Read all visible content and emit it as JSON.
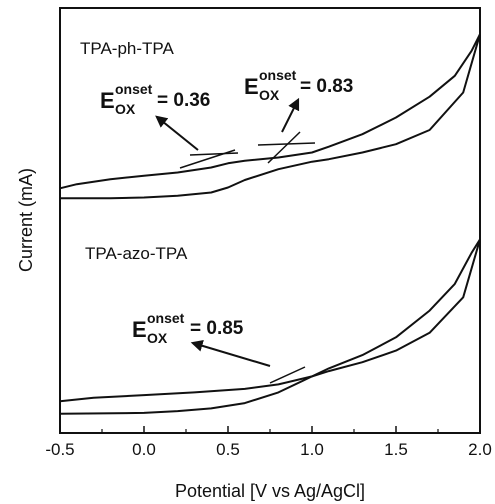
{
  "chart_data": {
    "type": "line",
    "xlabel": "Potential [V vs Ag/AgCl]",
    "ylabel": "Current (mA)",
    "xlim": [
      -0.5,
      2.0
    ],
    "xticks": [
      "-0.5",
      "0.0",
      "0.5",
      "1.0",
      "1.5",
      "2.0"
    ],
    "grid": false,
    "y_tick_labels": false,
    "panels": [
      {
        "label": "TPA-ph-TPA",
        "cv_forward": [
          [
            -0.5,
            4.5
          ],
          [
            -0.4,
            5.0
          ],
          [
            -0.2,
            5.6
          ],
          [
            0.0,
            6.0
          ],
          [
            0.2,
            6.4
          ],
          [
            0.4,
            7.0
          ],
          [
            0.5,
            7.5
          ],
          [
            0.6,
            7.8
          ],
          [
            0.8,
            8.2
          ],
          [
            1.0,
            8.8
          ],
          [
            1.1,
            9.5
          ],
          [
            1.3,
            11.0
          ],
          [
            1.5,
            13.0
          ],
          [
            1.7,
            15.5
          ],
          [
            1.85,
            18.0
          ],
          [
            1.95,
            21.0
          ],
          [
            2.0,
            23.0
          ]
        ],
        "cv_reverse": [
          [
            2.0,
            23.0
          ],
          [
            1.9,
            16.0
          ],
          [
            1.7,
            11.5
          ],
          [
            1.5,
            9.8
          ],
          [
            1.3,
            8.8
          ],
          [
            1.1,
            8.0
          ],
          [
            1.0,
            7.7
          ],
          [
            0.8,
            6.8
          ],
          [
            0.6,
            5.5
          ],
          [
            0.5,
            4.6
          ],
          [
            0.4,
            4.0
          ],
          [
            0.2,
            3.6
          ],
          [
            0.0,
            3.4
          ],
          [
            -0.2,
            3.3
          ],
          [
            -0.5,
            3.3
          ]
        ],
        "annotations": [
          {
            "sup": "onset",
            "sub": "OX",
            "value": "= 0.36"
          },
          {
            "sup": "onset",
            "sub": "OX",
            "value": "= 0.83"
          }
        ]
      },
      {
        "label": "TPA-azo-TPA",
        "cv_forward": [
          [
            -0.5,
            1.8
          ],
          [
            -0.3,
            2.2
          ],
          [
            0.0,
            2.5
          ],
          [
            0.3,
            2.8
          ],
          [
            0.6,
            3.2
          ],
          [
            0.8,
            3.7
          ],
          [
            1.0,
            4.6
          ],
          [
            1.1,
            5.5
          ],
          [
            1.3,
            7.0
          ],
          [
            1.5,
            9.0
          ],
          [
            1.7,
            12.0
          ],
          [
            1.85,
            15.0
          ],
          [
            1.95,
            18.5
          ],
          [
            2.0,
            20.0
          ]
        ],
        "cv_reverse": [
          [
            2.0,
            20.0
          ],
          [
            1.9,
            13.5
          ],
          [
            1.7,
            9.5
          ],
          [
            1.5,
            7.5
          ],
          [
            1.3,
            6.2
          ],
          [
            1.1,
            5.2
          ],
          [
            1.0,
            4.6
          ],
          [
            0.8,
            2.8
          ],
          [
            0.6,
            1.6
          ],
          [
            0.4,
            1.0
          ],
          [
            0.2,
            0.7
          ],
          [
            0.0,
            0.5
          ],
          [
            -0.5,
            0.4
          ]
        ],
        "annotations": [
          {
            "sup": "onset",
            "sub": "OX",
            "value": "= 0.85"
          }
        ]
      }
    ]
  }
}
